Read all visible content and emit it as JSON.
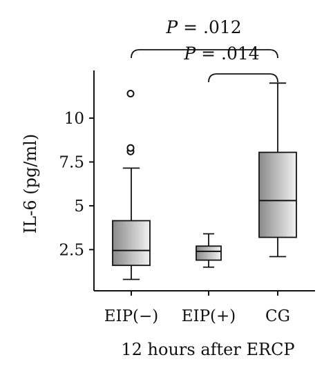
{
  "chart_data": {
    "type": "box",
    "xlabel": "12 hours after ERCP",
    "ylabel": "IL-6 (pg/ml)",
    "ylim": [
      0.15,
      12.8
    ],
    "yticks": [
      2.5,
      5,
      7.5,
      10
    ],
    "ytick_labels": [
      "2.5",
      "5",
      "7.5",
      "10"
    ],
    "categories": [
      "EIP(−)",
      "EIP(+)",
      "CG"
    ],
    "boxes": [
      {
        "category": "EIP(−)",
        "whisker_low": 0.8,
        "q1": 1.6,
        "median": 2.45,
        "q3": 4.15,
        "whisker_high": 7.15,
        "outliers": [
          8.1,
          8.3,
          11.4
        ]
      },
      {
        "category": "EIP(+)",
        "whisker_low": 1.5,
        "q1": 1.9,
        "median": 2.4,
        "q3": 2.7,
        "whisker_high": 3.4,
        "outliers": []
      },
      {
        "category": "CG",
        "whisker_low": 2.1,
        "q1": 3.2,
        "median": 5.3,
        "q3": 8.05,
        "whisker_high": 12.0,
        "outliers": []
      }
    ],
    "comparisons": [
      {
        "from": "EIP(−)",
        "to": "CG",
        "label_prefix": "P",
        "label_value": "= .012"
      },
      {
        "from": "EIP(+)",
        "to": "CG",
        "label_prefix": "P",
        "label_value": "= .014"
      }
    ],
    "box_fill": [
      "#8a8a8a",
      "#f2f2f2"
    ],
    "grid": false
  }
}
